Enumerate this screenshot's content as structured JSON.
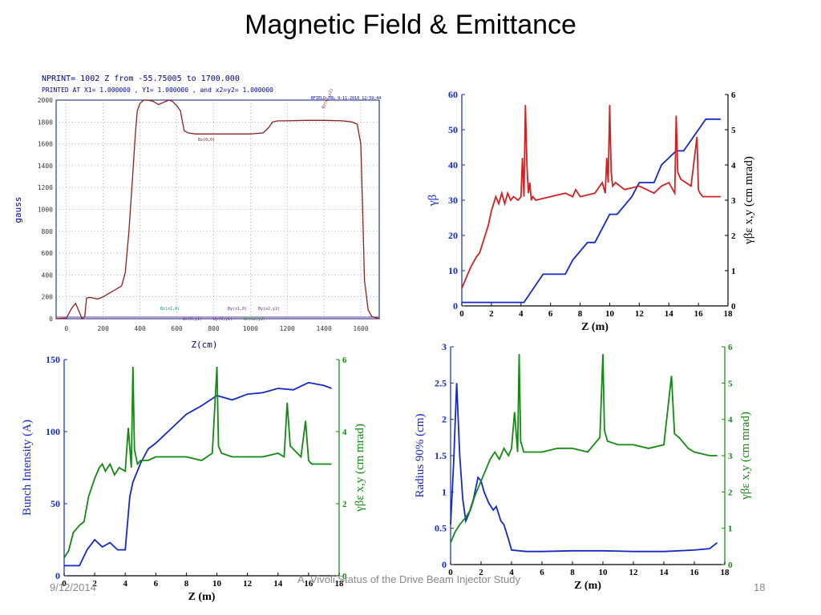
{
  "slide": {
    "title": "Magnetic Field & Emittance",
    "footer_date": "9/12/2014",
    "footer_center": "A. Vivoli Status of the Drive Beam Injector Study",
    "page_number": "18"
  },
  "colors": {
    "red": "#d42020",
    "blue": "#1428c8",
    "green": "#118a11",
    "field": "#8b2020",
    "header_blue": "#0000aa"
  },
  "chart_data": [
    {
      "id": "magnetic-field",
      "type": "line",
      "header": {
        "line1": "NPRINT= 1002  Z from -55.75005    to  1700.000",
        "line2": "PRINTED AT X1=  1.000000    , Y1=    1.000000    , and x2=y2=    1.000000",
        "file": "BFIELD.TBL",
        "date": "9-11-2010",
        "time": "12:59:44"
      },
      "xlabel": "Z(cm)",
      "ylabel": "gauss",
      "xlim": [
        -55.75,
        1700
      ],
      "ylim": [
        0,
        2000
      ],
      "xticks": [
        0,
        200,
        400,
        600,
        800,
        1000,
        1200,
        1400,
        1600
      ],
      "yticks": [
        0,
        200,
        400,
        600,
        800,
        1000,
        1200,
        1400,
        1600,
        1800,
        2000
      ],
      "grid": true,
      "annotations": [
        "Bz(x2,y2)",
        "Bz(0,0)",
        "Bz(x1,0)",
        "Bx(0,y1)",
        "By(0,y1)",
        "By(x1,0)",
        "Bx(x2,y2)",
        "By(x2,y2)"
      ],
      "series": [
        {
          "x": [
            -55.75,
            0,
            30,
            50,
            70,
            85,
            100,
            110,
            130,
            170,
            200,
            230,
            260,
            300,
            320,
            340,
            360,
            375,
            385,
            400,
            420,
            440,
            470,
            500,
            530,
            555,
            575,
            600,
            620,
            640,
            660,
            700,
            800,
            900,
            1000,
            1070,
            1100,
            1120,
            1150,
            1200,
            1300,
            1400,
            1500,
            1550,
            1580,
            1600,
            1610,
            1620,
            1640,
            1660,
            1700
          ],
          "y": [
            0,
            5,
            100,
            140,
            60,
            0,
            20,
            190,
            195,
            180,
            200,
            230,
            260,
            300,
            420,
            800,
            1300,
            1700,
            1900,
            1970,
            2000,
            2000,
            1990,
            1960,
            1980,
            2000,
            1990,
            1950,
            1900,
            1720,
            1700,
            1690,
            1690,
            1690,
            1690,
            1700,
            1750,
            1800,
            1810,
            1810,
            1815,
            1815,
            1810,
            1800,
            1780,
            1600,
            1000,
            350,
            80,
            20,
            0
          ]
        }
      ]
    },
    {
      "id": "gamma-beta-emittance",
      "type": "line",
      "xlabel": "Z  (m)",
      "ylabel_left": "γβ",
      "ylabel_right": "γβε x,y (cm mrad)",
      "xlim": [
        0,
        18
      ],
      "ylim_left": [
        0,
        60
      ],
      "ylim_right": [
        0,
        6
      ],
      "xticks": [
        0,
        2,
        4,
        6,
        8,
        10,
        12,
        14,
        16,
        18
      ],
      "yticks_left": [
        0,
        10,
        20,
        30,
        40,
        50,
        60
      ],
      "yticks_right": [
        0,
        1,
        2,
        3,
        4,
        5,
        6
      ],
      "series": [
        {
          "name": "γβ",
          "axis": "left",
          "color": "blue",
          "x": [
            0,
            4.2,
            5.5,
            7.0,
            7.5,
            8.5,
            9.0,
            10.0,
            10.5,
            11.5,
            12.0,
            13.0,
            13.5,
            14.5,
            15.0,
            16.0,
            16.5,
            17.5
          ],
          "y": [
            1,
            1,
            9,
            9,
            13,
            18,
            18,
            26,
            26,
            31,
            35,
            35,
            40,
            44,
            44,
            50,
            53,
            53
          ]
        },
        {
          "name": "γβεx,y",
          "axis": "right",
          "color": "red",
          "x": [
            0,
            0.3,
            0.6,
            1.0,
            1.2,
            1.5,
            1.8,
            2.0,
            2.3,
            2.5,
            2.7,
            2.9,
            3.1,
            3.3,
            3.5,
            3.8,
            4.0,
            4.1,
            4.2,
            4.3,
            4.4,
            4.5,
            4.6,
            4.7,
            4.8,
            5.0,
            5.5,
            6.0,
            7.0,
            7.5,
            7.7,
            8.0,
            9.0,
            9.5,
            9.7,
            9.8,
            9.9,
            10.0,
            10.1,
            10.2,
            10.4,
            11.0,
            12.0,
            12.5,
            13.0,
            13.5,
            14.0,
            14.4,
            14.5,
            14.6,
            14.8,
            15.5,
            15.9,
            16.0,
            16.1,
            16.3,
            17.0,
            17.5
          ],
          "y": [
            0.5,
            0.8,
            1.1,
            1.4,
            1.5,
            1.9,
            2.3,
            2.7,
            3.1,
            2.9,
            3.2,
            2.9,
            3.2,
            3.0,
            3.1,
            3.0,
            3.1,
            4.2,
            3.1,
            5.7,
            4.0,
            3.2,
            3.5,
            3.0,
            3.1,
            3.0,
            3.05,
            3.1,
            3.2,
            3.1,
            3.3,
            3.1,
            3.2,
            3.5,
            3.2,
            4.2,
            3.5,
            5.7,
            3.8,
            3.4,
            3.5,
            3.3,
            3.4,
            3.3,
            3.2,
            3.4,
            3.5,
            3.2,
            5.4,
            3.8,
            3.6,
            3.4,
            4.8,
            3.3,
            3.2,
            3.1,
            3.1,
            3.1
          ]
        }
      ]
    },
    {
      "id": "bunch-intensity-emittance",
      "type": "line",
      "xlabel": "Z  (m)",
      "ylabel_left": "Bunch Intensity (A)",
      "ylabel_right": "γβε x,y (cm mrad)",
      "xlim": [
        0,
        18
      ],
      "ylim_left": [
        0,
        150
      ],
      "ylim_right": [
        0,
        6
      ],
      "xticks": [
        0,
        2,
        4,
        6,
        8,
        10,
        12,
        14,
        16,
        18
      ],
      "yticks_left": [
        0,
        50,
        100,
        150
      ],
      "yticks_right": [
        0,
        2,
        4,
        6
      ],
      "series": [
        {
          "name": "Bunch Intensity",
          "axis": "left",
          "color": "blue",
          "x": [
            0,
            1.0,
            1.5,
            2.0,
            2.5,
            3.0,
            3.5,
            4.0,
            4.3,
            4.5,
            5.0,
            5.5,
            6.0,
            7.0,
            8.0,
            9.0,
            10.0,
            11.0,
            12.0,
            13.0,
            14.0,
            15.0,
            16.0,
            17.0,
            17.5
          ],
          "y": [
            7,
            7,
            18,
            25,
            20,
            23,
            18,
            18,
            55,
            65,
            78,
            88,
            92,
            102,
            112,
            118,
            125,
            122,
            126,
            127,
            130,
            129,
            134,
            132,
            130
          ],
          "comment": ""
        },
        {
          "name": "γβεx,y",
          "axis": "right",
          "color": "green",
          "x": [
            0,
            0.3,
            0.6,
            1.0,
            1.3,
            1.6,
            2.0,
            2.3,
            2.5,
            2.7,
            3.0,
            3.3,
            3.6,
            4.0,
            4.2,
            4.4,
            4.5,
            4.6,
            4.8,
            5.0,
            5.5,
            6.0,
            7.0,
            8.0,
            9.0,
            9.7,
            9.8,
            10.0,
            10.1,
            10.3,
            11.0,
            12.0,
            13.0,
            14.0,
            14.4,
            14.6,
            14.8,
            15.5,
            15.8,
            16.0,
            16.2,
            17.0,
            17.5
          ],
          "y": [
            0.5,
            0.7,
            1.2,
            1.4,
            1.5,
            2.2,
            2.7,
            3.0,
            3.1,
            2.9,
            3.1,
            2.8,
            3.0,
            2.9,
            4.1,
            3.0,
            5.8,
            3.5,
            3.1,
            3.2,
            3.2,
            3.3,
            3.3,
            3.3,
            3.2,
            3.4,
            4.2,
            5.8,
            3.6,
            3.4,
            3.3,
            3.3,
            3.3,
            3.4,
            3.3,
            4.8,
            3.6,
            3.3,
            4.3,
            3.2,
            3.1,
            3.1,
            3.1
          ]
        }
      ]
    },
    {
      "id": "radius-emittance",
      "type": "line",
      "xlabel": "Z  (m)",
      "ylabel_left": "Radius 90%  (cm)",
      "ylabel_right": "γβε x,y (cm mrad)",
      "xlim": [
        0,
        18
      ],
      "ylim_left": [
        0,
        3
      ],
      "ylim_right": [
        0,
        6
      ],
      "xticks": [
        0,
        2,
        4,
        6,
        8,
        10,
        12,
        14,
        16,
        18
      ],
      "yticks_left": [
        0,
        0.5,
        1,
        1.5,
        2,
        2.5,
        3
      ],
      "yticks_right": [
        0,
        1,
        2,
        3,
        4,
        5,
        6
      ],
      "series": [
        {
          "name": "Radius 90%",
          "axis": "left",
          "color": "blue",
          "x": [
            0,
            0.2,
            0.4,
            0.6,
            0.8,
            1.0,
            1.2,
            1.5,
            1.8,
            2.0,
            2.2,
            2.5,
            2.8,
            3.0,
            3.3,
            3.5,
            3.8,
            4.0,
            5.0,
            6.0,
            8.0,
            10.0,
            12.0,
            14.0,
            16.0,
            17.0,
            17.5
          ],
          "y": [
            0.55,
            1.4,
            2.5,
            1.5,
            0.9,
            0.6,
            0.7,
            0.9,
            1.2,
            1.15,
            1.0,
            0.85,
            0.75,
            0.8,
            0.6,
            0.55,
            0.35,
            0.2,
            0.18,
            0.18,
            0.19,
            0.19,
            0.18,
            0.18,
            0.2,
            0.22,
            0.3
          ]
        },
        {
          "name": "γβεx,y",
          "axis": "right",
          "color": "green",
          "x": [
            0,
            0.3,
            0.6,
            1.0,
            1.3,
            1.6,
            2.0,
            2.3,
            2.6,
            2.9,
            3.2,
            3.5,
            3.8,
            4.0,
            4.2,
            4.4,
            4.5,
            4.6,
            4.8,
            5.0,
            6.0,
            7.0,
            8.0,
            9.0,
            9.8,
            10.0,
            10.1,
            10.3,
            11.0,
            12.0,
            13.0,
            14.0,
            14.5,
            14.7,
            15.0,
            15.6,
            16.0,
            17.0,
            17.5
          ],
          "y": [
            0.6,
            0.9,
            1.1,
            1.3,
            1.5,
            1.9,
            2.3,
            2.6,
            2.9,
            3.1,
            2.9,
            3.2,
            3.0,
            3.2,
            4.2,
            3.1,
            5.8,
            3.4,
            3.1,
            3.1,
            3.1,
            3.2,
            3.2,
            3.1,
            3.5,
            5.8,
            3.7,
            3.4,
            3.3,
            3.3,
            3.2,
            3.3,
            5.2,
            3.6,
            3.5,
            3.2,
            3.1,
            3.0,
            3.0
          ]
        }
      ]
    }
  ]
}
